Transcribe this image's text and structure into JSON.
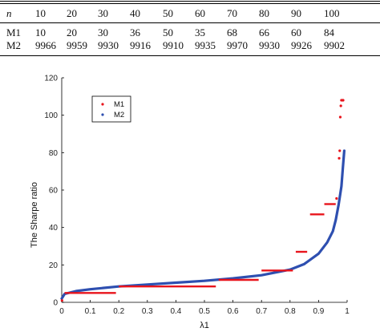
{
  "table": {
    "header": [
      "n",
      "10",
      "20",
      "30",
      "40",
      "50",
      "60",
      "70",
      "80",
      "90",
      "100"
    ],
    "rows": [
      [
        "M1",
        "10",
        "20",
        "30",
        "36",
        "50",
        "35",
        "68",
        "66",
        "60",
        "84"
      ],
      [
        "M2",
        "9966",
        "9959",
        "9930",
        "9916",
        "9910",
        "9935",
        "9970",
        "9930",
        "9926",
        "9902"
      ]
    ]
  },
  "chart_data": {
    "type": "scatter",
    "xlabel": "λ1",
    "ylabel": "The Sharpe ratio",
    "xlim": [
      0,
      1
    ],
    "ylim": [
      0,
      120
    ],
    "xticks": [
      "0",
      "0.1",
      "0.2",
      "0.3",
      "0.4",
      "0.5",
      "0.6",
      "0.7",
      "0.8",
      "0.9",
      "1"
    ],
    "yticks": [
      "0",
      "20",
      "40",
      "60",
      "80",
      "100",
      "120"
    ],
    "grid": false,
    "legend_position": "top-left",
    "series": [
      {
        "name": "M1",
        "color": "#e8141c",
        "marker": "dot",
        "segments": [
          {
            "x": [
              0.01,
              0.19
            ],
            "y": 5
          },
          {
            "x": [
              0.2,
              0.54
            ],
            "y": 8.5
          },
          {
            "x": [
              0.55,
              0.69
            ],
            "y": 12
          },
          {
            "x": [
              0.7,
              0.81
            ],
            "y": 17
          },
          {
            "x": [
              0.82,
              0.86
            ],
            "y": 27
          },
          {
            "x": [
              0.87,
              0.92
            ],
            "y": 47
          },
          {
            "x": [
              0.92,
              0.96
            ],
            "y": 52.5
          }
        ],
        "points": [
          [
            0.001,
            1
          ],
          [
            0.963,
            55.5
          ],
          [
            0.972,
            77
          ],
          [
            0.974,
            81
          ],
          [
            0.976,
            99
          ],
          [
            0.978,
            105
          ],
          [
            0.98,
            108
          ],
          [
            0.984,
            108
          ],
          [
            0.986,
            108
          ]
        ]
      },
      {
        "name": "M2",
        "color": "#2e4fb0",
        "marker": "dot",
        "curve": [
          [
            0,
            2
          ],
          [
            0.01,
            4.5
          ],
          [
            0.05,
            6
          ],
          [
            0.1,
            7
          ],
          [
            0.2,
            8.5
          ],
          [
            0.3,
            9.5
          ],
          [
            0.4,
            10.5
          ],
          [
            0.5,
            11.5
          ],
          [
            0.6,
            12.8
          ],
          [
            0.7,
            14.5
          ],
          [
            0.8,
            17.5
          ],
          [
            0.85,
            20.5
          ],
          [
            0.9,
            26
          ],
          [
            0.93,
            32
          ],
          [
            0.95,
            38
          ],
          [
            0.96,
            44
          ],
          [
            0.97,
            52
          ],
          [
            0.98,
            62
          ],
          [
            0.985,
            72
          ],
          [
            0.99,
            81
          ]
        ]
      }
    ]
  }
}
